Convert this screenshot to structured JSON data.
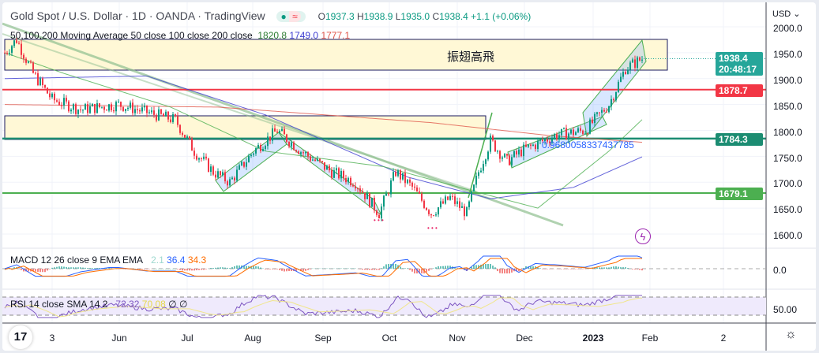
{
  "header": {
    "title": "Gold Spot / U.S. Dollar · 1D · OANDA · TradingView",
    "status_dot": "●",
    "status_wave": "≈",
    "open_label": "O",
    "open": "1937.3",
    "high_label": "H",
    "high": "1938.9",
    "low_label": "L",
    "low": "1935.0",
    "close_label": "C",
    "close": "1938.4",
    "change": "+1.1 (+0.06%)"
  },
  "ma_legend": {
    "label": "50,100,200 Moving Average 50 close 100 close 200 close",
    "ma50": "1820.8",
    "ma100": "1749.0",
    "ma200": "1777.1"
  },
  "macd_legend": {
    "label": "MACD 12 26 close 9 EMA EMA",
    "hist": "2.1",
    "macd": "36.4",
    "signal": "34.3"
  },
  "rsi_legend": {
    "label": "RSI 14 close SMA 14 2",
    "rsi": "72.32",
    "sma": "70.08",
    "extra1": "∅",
    "extra2": "∅"
  },
  "price_axis": {
    "currency": "USD ⌄",
    "ticks": [
      "2000.0",
      "1950.0",
      "1900.0",
      "1850.0",
      "1800.0",
      "1750.0",
      "1700.0",
      "1650.0",
      "1600.0"
    ],
    "macd_tick": "0.0",
    "rsi_tick": "50.00"
  },
  "badges": {
    "last_price": "1938.4",
    "countdown": "20:48:17",
    "level1": "1878.7",
    "level2": "1784.3",
    "level3": "1679.1"
  },
  "annotations": {
    "box_label": "振翅高飛",
    "fib_text": "0.9680058337437785",
    "marks1": "• • •",
    "marks2": "• • •"
  },
  "time_axis": [
    "3",
    "Jun",
    "Jul",
    "Aug",
    "Sep",
    "Oct",
    "Nov",
    "Dec",
    "2023",
    "Feb",
    "2"
  ],
  "colors": {
    "up": "#089981",
    "down": "#f23645",
    "ma50": "#4caf50",
    "ma100": "#3f3fd1",
    "ma200": "#e0564a",
    "level_red": "#f23645",
    "level_teal": "#1b8c72",
    "level_green": "#4caf50"
  },
  "chart_data": {
    "type": "candlestick",
    "waypoints_day_close": [
      [
        0,
        1950
      ],
      [
        5,
        1975
      ],
      [
        12,
        1910
      ],
      [
        20,
        1860
      ],
      [
        32,
        1840
      ],
      [
        48,
        1850
      ],
      [
        60,
        1835
      ],
      [
        72,
        1820
      ],
      [
        80,
        1760
      ],
      [
        88,
        1720
      ],
      [
        95,
        1700
      ],
      [
        105,
        1760
      ],
      [
        115,
        1800
      ],
      [
        125,
        1760
      ],
      [
        138,
        1720
      ],
      [
        148,
        1700
      ],
      [
        158,
        1640
      ],
      [
        165,
        1720
      ],
      [
        172,
        1690
      ],
      [
        180,
        1640
      ],
      [
        188,
        1670
      ],
      [
        195,
        1640
      ],
      [
        200,
        1720
      ],
      [
        205,
        1780
      ],
      [
        212,
        1740
      ],
      [
        218,
        1760
      ],
      [
        232,
        1790
      ],
      [
        245,
        1800
      ],
      [
        255,
        1850
      ],
      [
        262,
        1920
      ],
      [
        269,
        1938.4
      ]
    ],
    "ma200": [
      [
        0,
        1850
      ],
      [
        90,
        1845
      ],
      [
        180,
        1815
      ],
      [
        230,
        1790
      ],
      [
        269,
        1777.1
      ]
    ],
    "ma100": [
      [
        0,
        1900
      ],
      [
        60,
        1905
      ],
      [
        110,
        1830
      ],
      [
        170,
        1710
      ],
      [
        205,
        1668
      ],
      [
        240,
        1690
      ],
      [
        269,
        1749
      ]
    ],
    "ma50": [
      [
        0,
        1950
      ],
      [
        25,
        1910
      ],
      [
        70,
        1845
      ],
      [
        110,
        1760
      ],
      [
        160,
        1730
      ],
      [
        200,
        1680
      ],
      [
        225,
        1650
      ],
      [
        255,
        1760
      ],
      [
        269,
        1820.8
      ]
    ],
    "ylim": [
      1580,
      2020
    ]
  }
}
